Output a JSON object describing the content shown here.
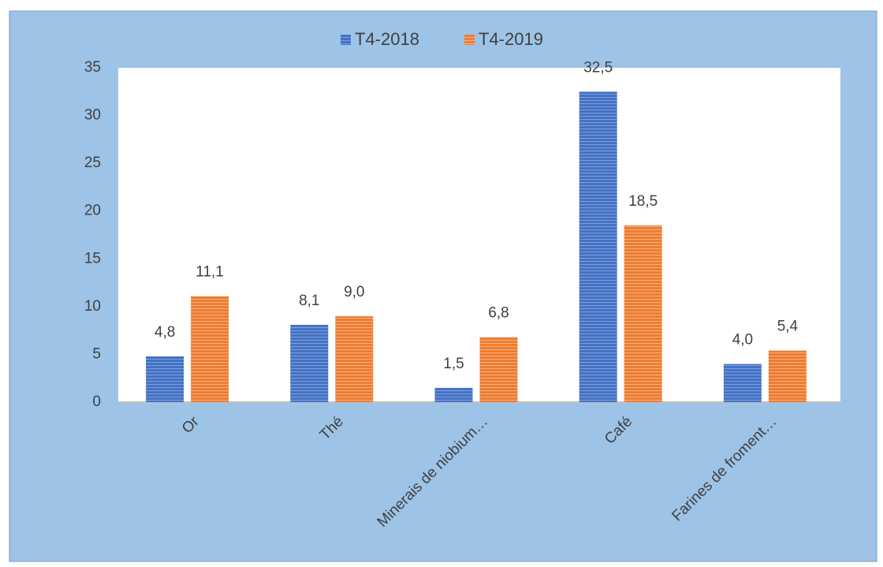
{
  "chart_data": {
    "type": "bar",
    "categories": [
      "Or",
      "Thé",
      "Minerais de niobium…",
      "Café",
      "Farines de froment…"
    ],
    "series": [
      {
        "name": "T4-2018",
        "color": "#4472c4",
        "values": [
          4.8,
          8.1,
          1.5,
          32.5,
          4.0
        ],
        "value_labels": [
          "4,8",
          "8,1",
          "1,5",
          "32,5",
          "4,0"
        ]
      },
      {
        "name": "T4-2019",
        "color": "#ed7d31",
        "values": [
          11.1,
          9.0,
          6.8,
          18.5,
          5.4
        ],
        "value_labels": [
          "11,1",
          "9,0",
          "6,8",
          "18,5",
          "5,4"
        ]
      }
    ],
    "ylim": [
      0,
      35
    ],
    "yticks": [
      0,
      5,
      10,
      15,
      20,
      25,
      30,
      35
    ],
    "legend": "top",
    "grid": false
  }
}
